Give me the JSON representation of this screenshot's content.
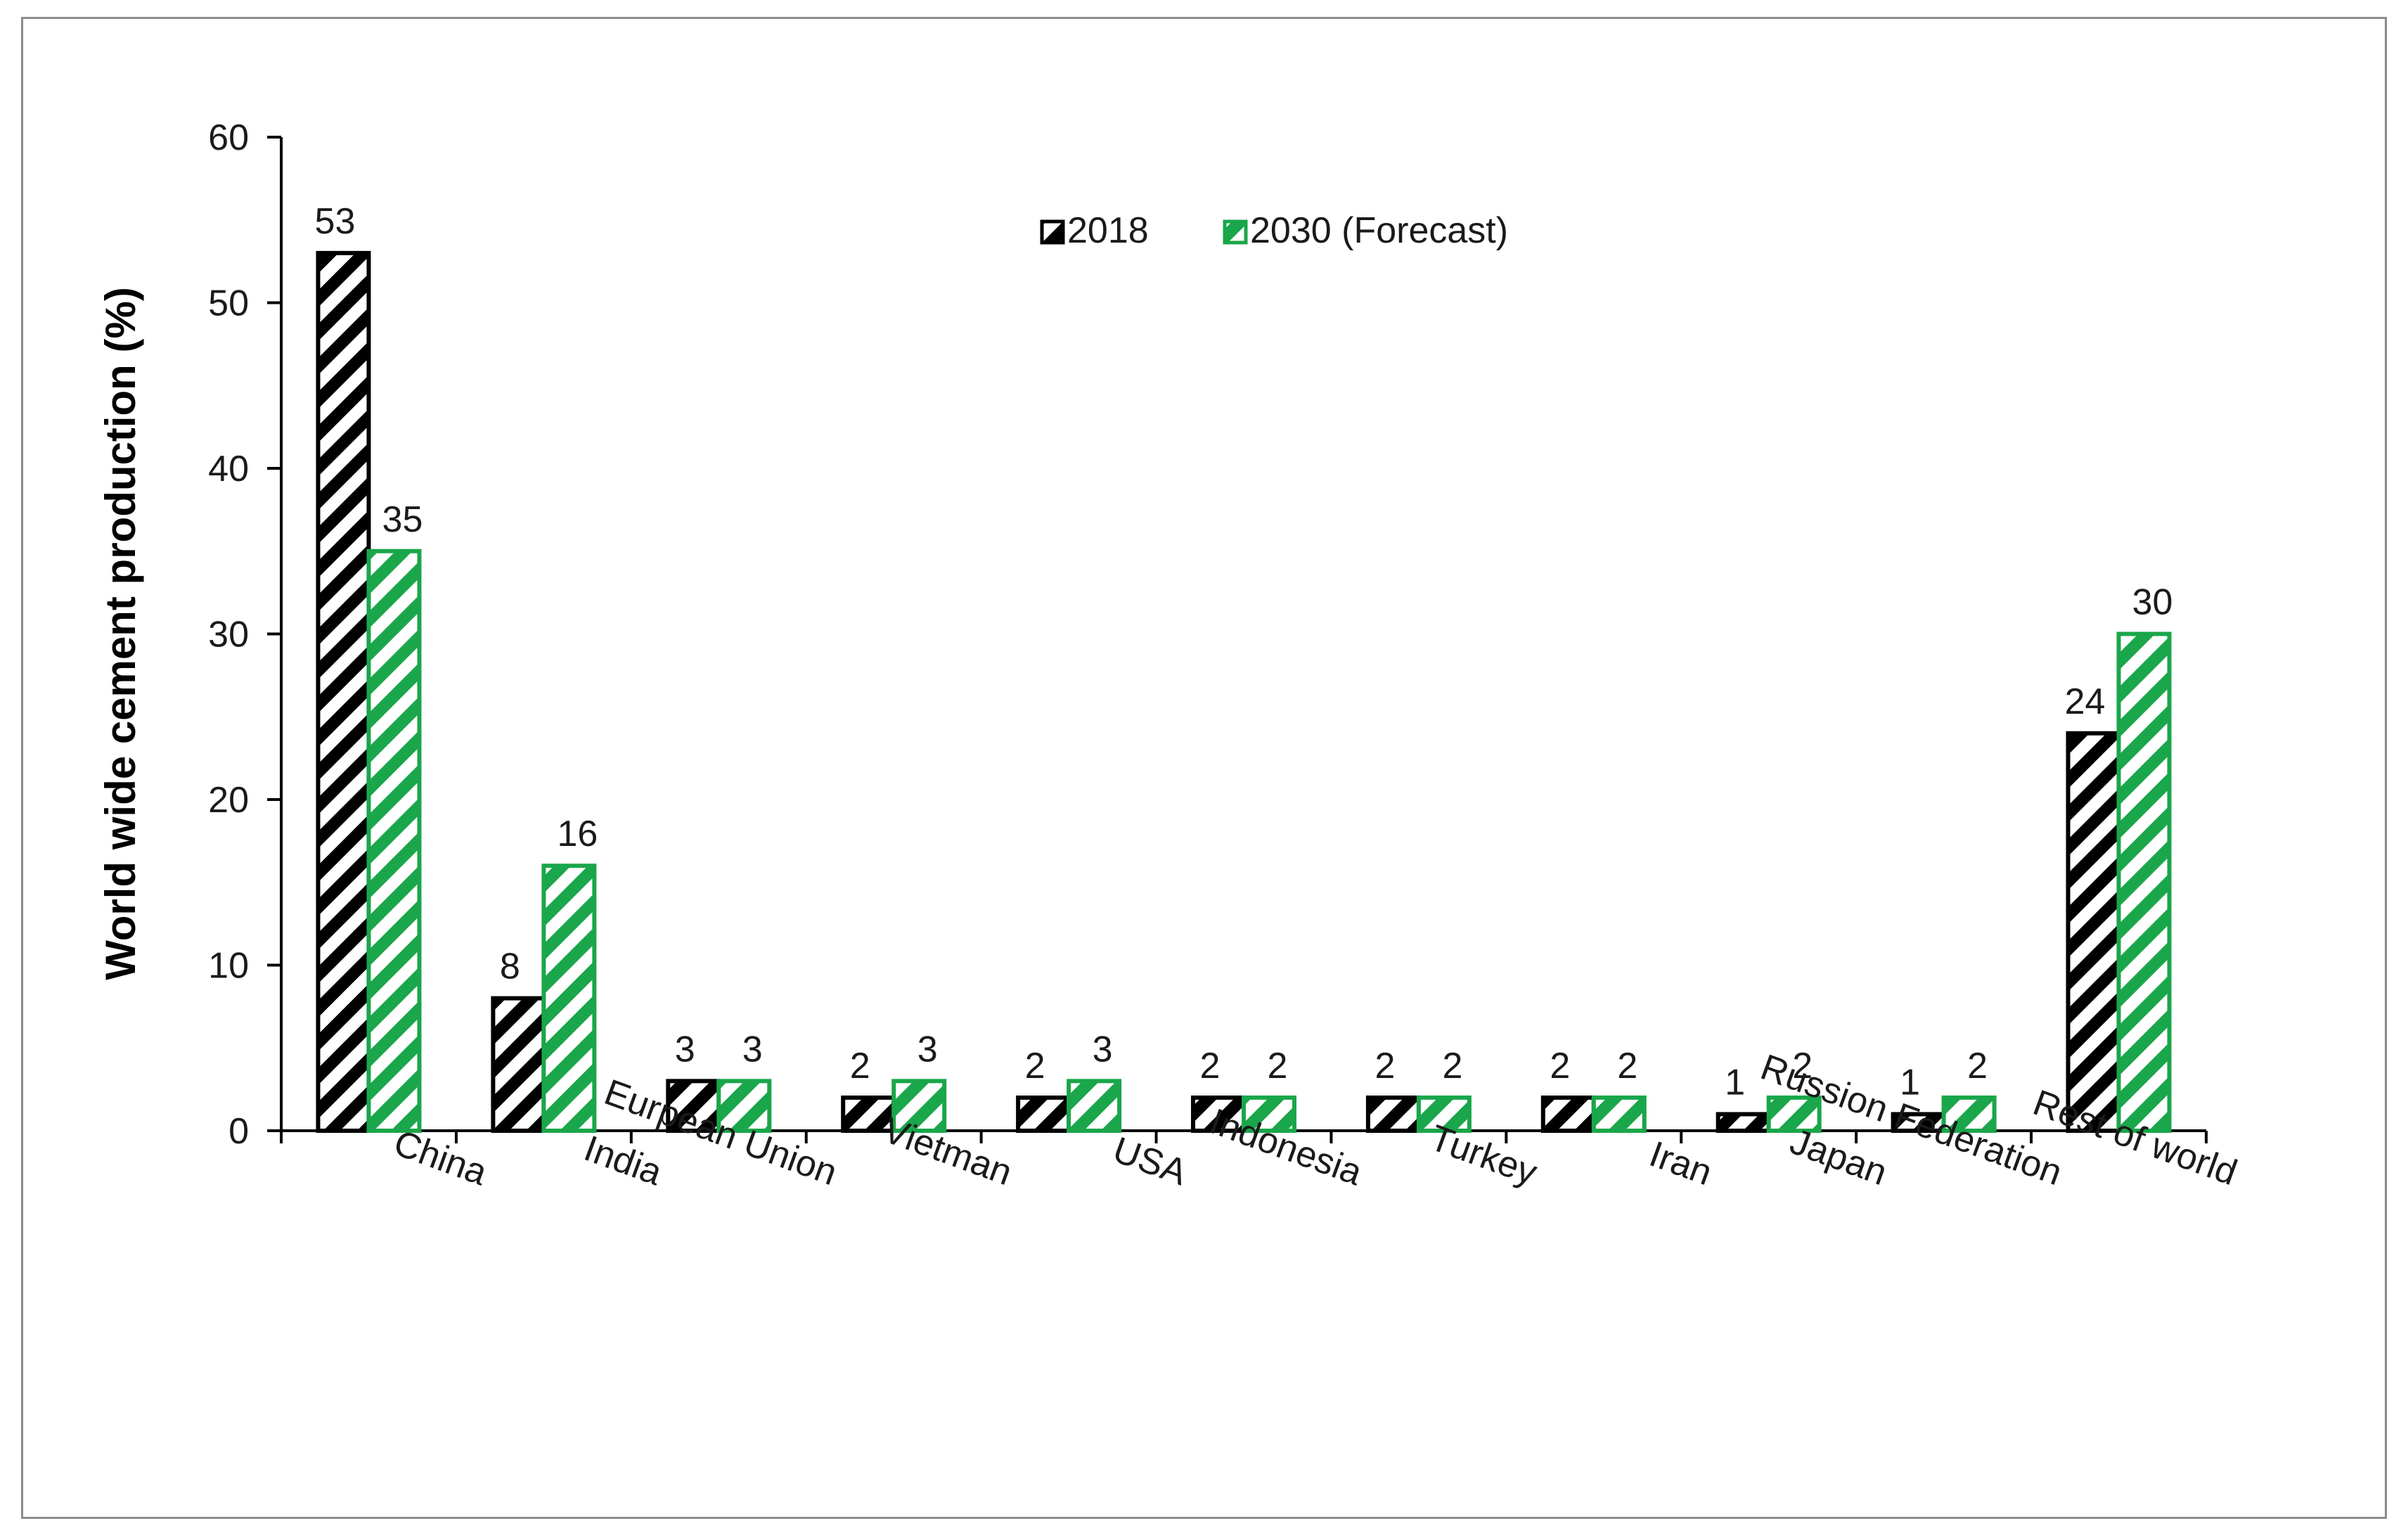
{
  "chart_data": {
    "type": "bar",
    "title": "",
    "xlabel": "",
    "ylabel": "World wide cement production (%)",
    "ylim": [
      0,
      60
    ],
    "yticks": [
      0,
      10,
      20,
      30,
      40,
      50,
      60
    ],
    "grid": false,
    "legend_position": "top-center",
    "categories": [
      "China",
      "India",
      "Eurpean Union",
      "Vietman",
      "USA",
      "Indonesia",
      "Turkey",
      "Iran",
      "Japan",
      "Russion Federation",
      "Rest of world"
    ],
    "series": [
      {
        "name": "2018",
        "color": "#000000",
        "pattern": "diagonal-hatch",
        "values": [
          53,
          8,
          3,
          2,
          2,
          2,
          2,
          2,
          1,
          1,
          24
        ]
      },
      {
        "name": "2030 (Forecast)",
        "color": "#1aa64a",
        "pattern": "diagonal-hatch",
        "values": [
          35,
          16,
          3,
          3,
          3,
          2,
          2,
          2,
          2,
          2,
          30
        ]
      }
    ]
  }
}
